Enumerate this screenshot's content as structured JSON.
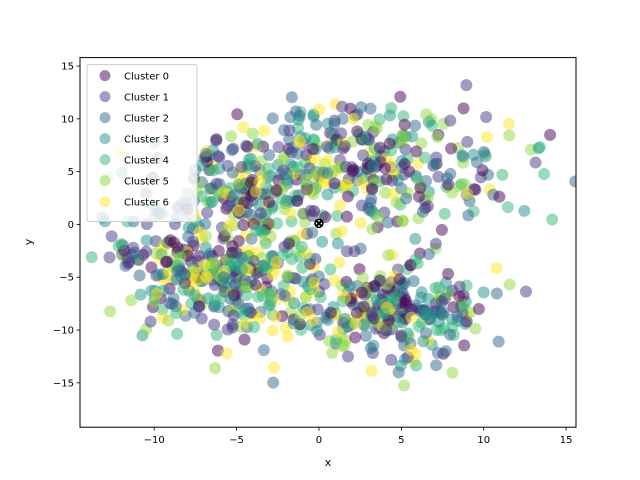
{
  "chart_data": {
    "type": "scatter",
    "title": "",
    "xlabel": "x",
    "ylabel": "y",
    "xlim": [
      -14.5,
      15.6
    ],
    "ylim": [
      -19.2,
      15.8
    ],
    "xticks": [
      -10,
      -5,
      0,
      5,
      10,
      15
    ],
    "yticks": [
      -15,
      -10,
      -5,
      0,
      5,
      10,
      15
    ],
    "grid": false,
    "legend": "top-left",
    "point_alpha": 0.5,
    "centroid": {
      "x": 0.0,
      "y": 0.1,
      "marker": "x",
      "color": "#000000"
    },
    "blobs": [
      {
        "cx": -5.2,
        "cy": -4.2,
        "sx": 3.0,
        "sy": 3.2,
        "n": 330
      },
      {
        "cx": -9.2,
        "cy": -4.6,
        "sx": 1.6,
        "sy": 2.4,
        "n": 60
      },
      {
        "cx": 2.6,
        "cy": 5.3,
        "sx": 4.8,
        "sy": 3.0,
        "n": 360
      },
      {
        "cx": -5.0,
        "cy": 3.6,
        "sx": 2.8,
        "sy": 1.7,
        "n": 90
      },
      {
        "cx": 4.6,
        "cy": -8.4,
        "sx": 3.0,
        "sy": 2.4,
        "n": 260
      }
    ],
    "series": [
      {
        "name": "Cluster 0",
        "color": "#440154"
      },
      {
        "name": "Cluster 1",
        "color": "#443983"
      },
      {
        "name": "Cluster 2",
        "color": "#31688e"
      },
      {
        "name": "Cluster 3",
        "color": "#21918c"
      },
      {
        "name": "Cluster 4",
        "color": "#35b779"
      },
      {
        "name": "Cluster 5",
        "color": "#90d743"
      },
      {
        "name": "Cluster 6",
        "color": "#fde725"
      }
    ]
  }
}
